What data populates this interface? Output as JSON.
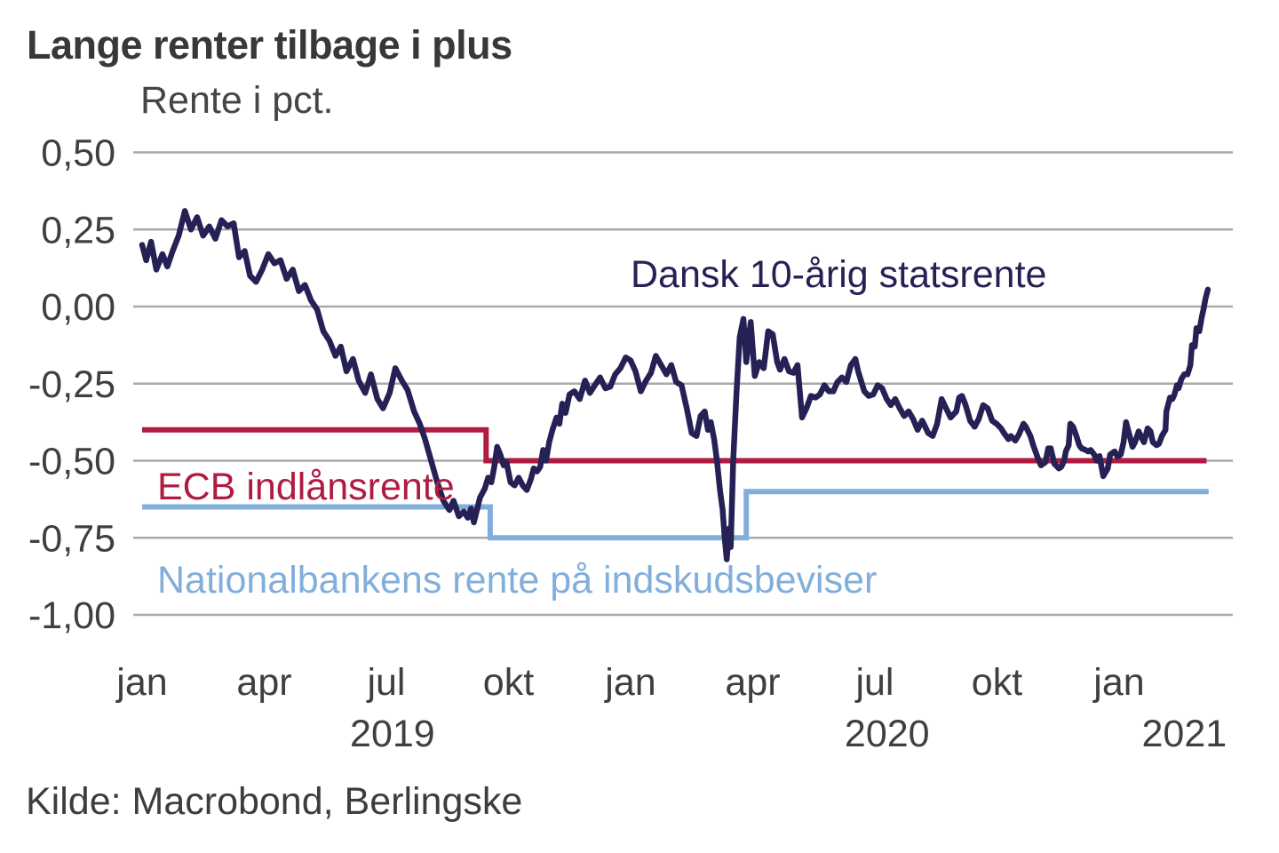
{
  "header": {
    "title": "Lange renter tilbage i plus",
    "axis_title": "Rente i pct."
  },
  "source": "Kilde: Macrobond, Berlingske",
  "colors": {
    "govt_bond": "#262155",
    "ecb": "#b01b41",
    "nationalbank": "#82aedb",
    "grid": "#a9a9a9",
    "axis_text": "#3f3f3f"
  },
  "chart_data": {
    "type": "line",
    "title": "Lange renter tilbage i plus",
    "ylabel": "Rente i pct.",
    "x_unit": "months since January 2019",
    "ylim": [
      -1.0,
      0.5
    ],
    "grid": true,
    "legend_position": "inline-annotations",
    "y_ticks": [
      {
        "v": 0.5,
        "label": "0,50"
      },
      {
        "v": 0.25,
        "label": "0,25"
      },
      {
        "v": 0.0,
        "label": "0,00"
      },
      {
        "v": -0.25,
        "label": "-0,25"
      },
      {
        "v": -0.5,
        "label": "-0,50"
      },
      {
        "v": -0.75,
        "label": "-0,75"
      },
      {
        "v": -1.0,
        "label": "-1,00"
      }
    ],
    "x_ticks": [
      {
        "m": 0,
        "label": "jan"
      },
      {
        "m": 3,
        "label": "apr"
      },
      {
        "m": 6,
        "label": "jul"
      },
      {
        "m": 9,
        "label": "okt"
      },
      {
        "m": 12,
        "label": "jan"
      },
      {
        "m": 15,
        "label": "apr"
      },
      {
        "m": 18,
        "label": "jul"
      },
      {
        "m": 21,
        "label": "okt"
      },
      {
        "m": 24,
        "label": "jan"
      }
    ],
    "year_labels": [
      {
        "m": 6.15,
        "label": "2019"
      },
      {
        "m": 18.3,
        "label": "2020"
      },
      {
        "m": 25.6,
        "label": "2021"
      }
    ],
    "series": [
      {
        "name": "Dansk 10-årig statsrente",
        "color_key": "govt_bond",
        "stroke_width": 6.5,
        "step": false,
        "points": [
          [
            0.0,
            0.2
          ],
          [
            0.1,
            0.15
          ],
          [
            0.22,
            0.21
          ],
          [
            0.35,
            0.12
          ],
          [
            0.5,
            0.17
          ],
          [
            0.62,
            0.13
          ],
          [
            0.75,
            0.18
          ],
          [
            0.9,
            0.23
          ],
          [
            1.05,
            0.31
          ],
          [
            1.2,
            0.25
          ],
          [
            1.35,
            0.29
          ],
          [
            1.5,
            0.23
          ],
          [
            1.65,
            0.26
          ],
          [
            1.8,
            0.22
          ],
          [
            1.95,
            0.28
          ],
          [
            2.1,
            0.26
          ],
          [
            2.25,
            0.27
          ],
          [
            2.38,
            0.16
          ],
          [
            2.52,
            0.18
          ],
          [
            2.65,
            0.1
          ],
          [
            2.8,
            0.08
          ],
          [
            2.95,
            0.12
          ],
          [
            3.1,
            0.17
          ],
          [
            3.25,
            0.14
          ],
          [
            3.4,
            0.15
          ],
          [
            3.55,
            0.09
          ],
          [
            3.7,
            0.12
          ],
          [
            3.85,
            0.05
          ],
          [
            4.0,
            0.07
          ],
          [
            4.15,
            0.02
          ],
          [
            4.3,
            -0.01
          ],
          [
            4.45,
            -0.08
          ],
          [
            4.6,
            -0.11
          ],
          [
            4.75,
            -0.16
          ],
          [
            4.88,
            -0.13
          ],
          [
            5.02,
            -0.21
          ],
          [
            5.18,
            -0.17
          ],
          [
            5.32,
            -0.24
          ],
          [
            5.48,
            -0.28
          ],
          [
            5.62,
            -0.22
          ],
          [
            5.78,
            -0.3
          ],
          [
            5.92,
            -0.33
          ],
          [
            6.08,
            -0.28
          ],
          [
            6.22,
            -0.2
          ],
          [
            6.38,
            -0.24
          ],
          [
            6.52,
            -0.27
          ],
          [
            6.68,
            -0.34
          ],
          [
            6.82,
            -0.38
          ],
          [
            6.95,
            -0.43
          ],
          [
            7.1,
            -0.5
          ],
          [
            7.25,
            -0.57
          ],
          [
            7.4,
            -0.63
          ],
          [
            7.55,
            -0.66
          ],
          [
            7.65,
            -0.63
          ],
          [
            7.78,
            -0.68
          ],
          [
            7.9,
            -0.665
          ],
          [
            8.0,
            -0.685
          ],
          [
            8.08,
            -0.655
          ],
          [
            8.15,
            -0.7
          ],
          [
            8.3,
            -0.62
          ],
          [
            8.42,
            -0.59
          ],
          [
            8.5,
            -0.555
          ],
          [
            8.58,
            -0.57
          ],
          [
            8.65,
            -0.52
          ],
          [
            8.72,
            -0.455
          ],
          [
            8.8,
            -0.48
          ],
          [
            8.88,
            -0.515
          ],
          [
            8.95,
            -0.505
          ],
          [
            9.05,
            -0.57
          ],
          [
            9.15,
            -0.58
          ],
          [
            9.25,
            -0.555
          ],
          [
            9.35,
            -0.58
          ],
          [
            9.45,
            -0.595
          ],
          [
            9.55,
            -0.56
          ],
          [
            9.62,
            -0.525
          ],
          [
            9.7,
            -0.535
          ],
          [
            9.78,
            -0.52
          ],
          [
            9.85,
            -0.465
          ],
          [
            9.92,
            -0.5
          ],
          [
            10.0,
            -0.44
          ],
          [
            10.08,
            -0.4
          ],
          [
            10.18,
            -0.36
          ],
          [
            10.25,
            -0.38
          ],
          [
            10.32,
            -0.315
          ],
          [
            10.4,
            -0.345
          ],
          [
            10.5,
            -0.285
          ],
          [
            10.62,
            -0.275
          ],
          [
            10.75,
            -0.3
          ],
          [
            10.88,
            -0.24
          ],
          [
            11.0,
            -0.28
          ],
          [
            11.12,
            -0.255
          ],
          [
            11.25,
            -0.23
          ],
          [
            11.38,
            -0.265
          ],
          [
            11.5,
            -0.26
          ],
          [
            11.62,
            -0.22
          ],
          [
            11.75,
            -0.2
          ],
          [
            11.88,
            -0.165
          ],
          [
            12.0,
            -0.175
          ],
          [
            12.12,
            -0.21
          ],
          [
            12.25,
            -0.275
          ],
          [
            12.38,
            -0.24
          ],
          [
            12.5,
            -0.215
          ],
          [
            12.62,
            -0.16
          ],
          [
            12.75,
            -0.19
          ],
          [
            12.88,
            -0.22
          ],
          [
            13.0,
            -0.19
          ],
          [
            13.12,
            -0.245
          ],
          [
            13.25,
            -0.255
          ],
          [
            13.38,
            -0.33
          ],
          [
            13.5,
            -0.41
          ],
          [
            13.62,
            -0.42
          ],
          [
            13.72,
            -0.355
          ],
          [
            13.82,
            -0.34
          ],
          [
            13.9,
            -0.4
          ],
          [
            13.97,
            -0.375
          ],
          [
            14.05,
            -0.43
          ],
          [
            14.12,
            -0.5
          ],
          [
            14.2,
            -0.6
          ],
          [
            14.26,
            -0.66
          ],
          [
            14.31,
            -0.75
          ],
          [
            14.36,
            -0.82
          ],
          [
            14.42,
            -0.72
          ],
          [
            14.46,
            -0.78
          ],
          [
            14.52,
            -0.5
          ],
          [
            14.6,
            -0.28
          ],
          [
            14.68,
            -0.1
          ],
          [
            14.77,
            -0.04
          ],
          [
            14.84,
            -0.18
          ],
          [
            14.95,
            -0.05
          ],
          [
            15.05,
            -0.225
          ],
          [
            15.16,
            -0.18
          ],
          [
            15.27,
            -0.2
          ],
          [
            15.38,
            -0.08
          ],
          [
            15.49,
            -0.09
          ],
          [
            15.6,
            -0.18
          ],
          [
            15.67,
            -0.205
          ],
          [
            15.78,
            -0.17
          ],
          [
            15.89,
            -0.21
          ],
          [
            16.0,
            -0.215
          ],
          [
            16.1,
            -0.19
          ],
          [
            16.21,
            -0.36
          ],
          [
            16.32,
            -0.33
          ],
          [
            16.43,
            -0.29
          ],
          [
            16.54,
            -0.295
          ],
          [
            16.65,
            -0.285
          ],
          [
            16.76,
            -0.255
          ],
          [
            16.87,
            -0.275
          ],
          [
            16.98,
            -0.275
          ],
          [
            17.08,
            -0.245
          ],
          [
            17.19,
            -0.23
          ],
          [
            17.3,
            -0.245
          ],
          [
            17.41,
            -0.19
          ],
          [
            17.52,
            -0.17
          ],
          [
            17.59,
            -0.21
          ],
          [
            17.74,
            -0.275
          ],
          [
            17.85,
            -0.29
          ],
          [
            17.96,
            -0.285
          ],
          [
            18.07,
            -0.255
          ],
          [
            18.18,
            -0.265
          ],
          [
            18.29,
            -0.3
          ],
          [
            18.39,
            -0.32
          ],
          [
            18.5,
            -0.3
          ],
          [
            18.61,
            -0.33
          ],
          [
            18.72,
            -0.355
          ],
          [
            18.83,
            -0.34
          ],
          [
            18.94,
            -0.365
          ],
          [
            19.05,
            -0.4
          ],
          [
            19.16,
            -0.37
          ],
          [
            19.2,
            -0.38
          ],
          [
            19.31,
            -0.41
          ],
          [
            19.42,
            -0.42
          ],
          [
            19.53,
            -0.38
          ],
          [
            19.64,
            -0.3
          ],
          [
            19.75,
            -0.33
          ],
          [
            19.86,
            -0.36
          ],
          [
            20.0,
            -0.34
          ],
          [
            20.07,
            -0.295
          ],
          [
            20.14,
            -0.29
          ],
          [
            20.23,
            -0.32
          ],
          [
            20.34,
            -0.37
          ],
          [
            20.45,
            -0.39
          ],
          [
            20.55,
            -0.365
          ],
          [
            20.66,
            -0.32
          ],
          [
            20.77,
            -0.33
          ],
          [
            20.88,
            -0.37
          ],
          [
            20.99,
            -0.38
          ],
          [
            21.1,
            -0.395
          ],
          [
            21.17,
            -0.41
          ],
          [
            21.28,
            -0.43
          ],
          [
            21.34,
            -0.42
          ],
          [
            21.45,
            -0.435
          ],
          [
            21.54,
            -0.415
          ],
          [
            21.65,
            -0.38
          ],
          [
            21.71,
            -0.39
          ],
          [
            21.82,
            -0.42
          ],
          [
            21.89,
            -0.45
          ],
          [
            22.0,
            -0.49
          ],
          [
            22.08,
            -0.515
          ],
          [
            22.19,
            -0.505
          ],
          [
            22.26,
            -0.46
          ],
          [
            22.32,
            -0.46
          ],
          [
            22.41,
            -0.51
          ],
          [
            22.52,
            -0.525
          ],
          [
            22.58,
            -0.52
          ],
          [
            22.65,
            -0.5
          ],
          [
            22.69,
            -0.47
          ],
          [
            22.76,
            -0.45
          ],
          [
            22.8,
            -0.38
          ],
          [
            22.87,
            -0.39
          ],
          [
            22.95,
            -0.42
          ],
          [
            23.02,
            -0.45
          ],
          [
            23.08,
            -0.46
          ],
          [
            23.17,
            -0.465
          ],
          [
            23.24,
            -0.47
          ],
          [
            23.3,
            -0.465
          ],
          [
            23.39,
            -0.48
          ],
          [
            23.45,
            -0.5
          ],
          [
            23.52,
            -0.485
          ],
          [
            23.61,
            -0.55
          ],
          [
            23.72,
            -0.525
          ],
          [
            23.78,
            -0.48
          ],
          [
            23.89,
            -0.47
          ],
          [
            23.96,
            -0.487
          ],
          [
            24.04,
            -0.48
          ],
          [
            24.11,
            -0.44
          ],
          [
            24.17,
            -0.375
          ],
          [
            24.26,
            -0.42
          ],
          [
            24.33,
            -0.455
          ],
          [
            24.39,
            -0.44
          ],
          [
            24.48,
            -0.405
          ],
          [
            24.55,
            -0.425
          ],
          [
            24.61,
            -0.44
          ],
          [
            24.7,
            -0.395
          ],
          [
            24.77,
            -0.405
          ],
          [
            24.83,
            -0.44
          ],
          [
            24.92,
            -0.45
          ],
          [
            24.98,
            -0.445
          ],
          [
            25.05,
            -0.42
          ],
          [
            25.14,
            -0.4
          ],
          [
            25.16,
            -0.34
          ],
          [
            25.25,
            -0.295
          ],
          [
            25.31,
            -0.3
          ],
          [
            25.36,
            -0.285
          ],
          [
            25.42,
            -0.255
          ],
          [
            25.46,
            -0.265
          ],
          [
            25.53,
            -0.235
          ],
          [
            25.6,
            -0.22
          ],
          [
            25.68,
            -0.22
          ],
          [
            25.75,
            -0.19
          ],
          [
            25.79,
            -0.125
          ],
          [
            25.86,
            -0.13
          ],
          [
            25.9,
            -0.07
          ],
          [
            25.97,
            -0.08
          ],
          [
            26.03,
            -0.035
          ],
          [
            26.08,
            -0.005
          ],
          [
            26.12,
            0.025
          ],
          [
            26.18,
            0.055
          ]
        ]
      },
      {
        "name": "ECB indlånsrente",
        "color_key": "ecb",
        "stroke_width": 6,
        "step": true,
        "points": [
          [
            0,
            -0.4
          ],
          [
            8.45,
            -0.4
          ],
          [
            8.45,
            -0.5
          ],
          [
            26.15,
            -0.5
          ]
        ]
      },
      {
        "name": "Nationalbankens rente på indskudsbeviser",
        "color_key": "nationalbank",
        "stroke_width": 6,
        "step": true,
        "points": [
          [
            0,
            -0.65
          ],
          [
            8.55,
            -0.65
          ],
          [
            8.55,
            -0.75
          ],
          [
            14.84,
            -0.75
          ],
          [
            14.84,
            -0.6
          ],
          [
            26.2,
            -0.6
          ]
        ]
      }
    ]
  }
}
